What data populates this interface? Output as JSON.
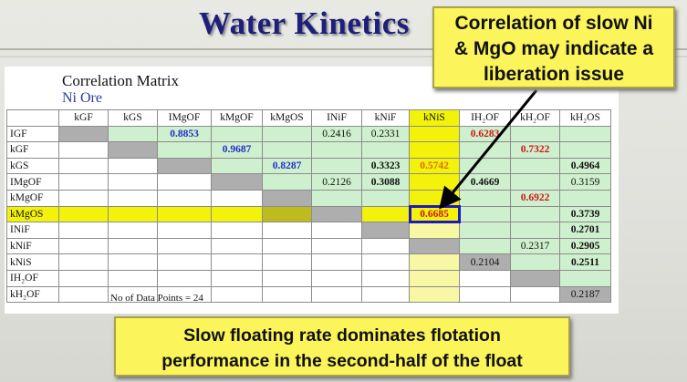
{
  "title": "Water Kinetics",
  "callout": {
    "lines": [
      "Correlation of slow Ni",
      "& MgO may indicate a",
      "liberation issue"
    ]
  },
  "matrix": {
    "title": "Correlation Matrix",
    "subtitle": "Ni Ore",
    "columns": [
      "kGF",
      "kGS",
      "IMgOF",
      "kMgOF",
      "kMgOS",
      "INiF",
      "kNiF",
      "kNiS",
      "IH₂OF",
      "kH₂OF",
      "kH₂OS"
    ],
    "rows": [
      {
        "label": "IGF",
        "cells": [
          "",
          "",
          "0.8853",
          "",
          "",
          "0.2416",
          "0.2331",
          "",
          "0.6283",
          "",
          ""
        ]
      },
      {
        "label": "kGF",
        "cells": [
          "",
          "",
          "",
          "0.9687",
          "",
          "",
          "",
          "",
          "",
          "0.7322",
          ""
        ]
      },
      {
        "label": "kGS",
        "cells": [
          "",
          "",
          "",
          "",
          "0.8287",
          "",
          "0.3323",
          "0.5742",
          "",
          "",
          "0.4964"
        ]
      },
      {
        "label": "IMgOF",
        "cells": [
          "",
          "",
          "",
          "",
          "",
          "0.2126",
          "0.3088",
          "",
          "0.4669",
          "",
          "0.3159"
        ]
      },
      {
        "label": "kMgOF",
        "cells": [
          "",
          "",
          "",
          "",
          "",
          "",
          "",
          "",
          "",
          "0.6922",
          ""
        ]
      },
      {
        "label": "kMgOS",
        "cells": [
          "",
          "",
          "",
          "",
          "",
          "",
          "",
          "0.6685",
          "",
          "",
          "0.3739"
        ]
      },
      {
        "label": "INiF",
        "cells": [
          "",
          "",
          "",
          "",
          "",
          "",
          "",
          "",
          "",
          "",
          "0.2701"
        ]
      },
      {
        "label": "kNiF",
        "cells": [
          "",
          "",
          "",
          "",
          "",
          "",
          "",
          "",
          "",
          "0.2317",
          "0.2905"
        ]
      },
      {
        "label": "kNiS",
        "cells": [
          "",
          "",
          "",
          "",
          "",
          "",
          "",
          "",
          "0.2104",
          "",
          "0.2511"
        ]
      },
      {
        "label": "IH₂OF",
        "cells": [
          "",
          "",
          "",
          "",
          "",
          "",
          "",
          "",
          "",
          "",
          ""
        ]
      },
      {
        "label": "kH₂OF",
        "cells": [
          "",
          "",
          "",
          "",
          "",
          "",
          "",
          "",
          "",
          "",
          "0.2187"
        ]
      }
    ],
    "data_points_note": "No of Data Points = 24"
  },
  "bottom_box": {
    "lines": [
      "Slow floating rate dominates flotation",
      "performance in the second-half of the float"
    ]
  },
  "colors": {
    "title": "#1d1f7a",
    "callout_bg": "#fbf45a",
    "positive_blue": "#2230c8",
    "red_value": "#d01515",
    "orange_value": "#e86a00",
    "green_cell": "#cff0cf",
    "gray_cell": "#aeaeae",
    "highlight_box": "#1a1abf"
  }
}
